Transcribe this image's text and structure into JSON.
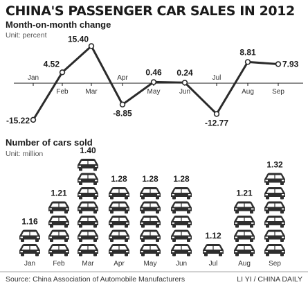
{
  "title": "CHINA'S PASSENGER CAR SALES IN 2012",
  "source": "Source: China Association of Automobile Manufacturers",
  "credit": "LI YI / CHINA DAILY",
  "colors": {
    "line": "#2b2b2b",
    "car_body": "#2e2e2e",
    "car_window": "#ffffff",
    "axis": "#1a1a1a",
    "footer_rule": "#888888"
  },
  "chart_data": [
    {
      "type": "line",
      "title": "Month-on-month change",
      "unit": "Unit: percent",
      "categories": [
        "Jan",
        "Feb",
        "Mar",
        "Apr",
        "May",
        "Jun",
        "Jul",
        "Aug",
        "Sep"
      ],
      "values": [
        -15.22,
        4.52,
        15.4,
        -8.85,
        0.46,
        0.24,
        -12.77,
        8.81,
        7.93
      ],
      "value_labels": [
        "-15.22",
        "4.52",
        "15.40",
        "-8.85",
        "0.46",
        "0.24",
        "-12.77",
        "8.81",
        "7.93"
      ],
      "ylim": [
        -17,
        17
      ],
      "grid": false
    },
    {
      "type": "bar",
      "title": "Number of cars sold",
      "unit": "Unit: million",
      "categories": [
        "Jan",
        "Feb",
        "Mar",
        "Apr",
        "May",
        "Jun",
        "Jul",
        "Aug",
        "Sep"
      ],
      "values": [
        1.16,
        1.21,
        1.4,
        1.28,
        1.28,
        1.28,
        1.12,
        1.21,
        1.32
      ],
      "value_labels": [
        "1.16",
        "1.21",
        "1.40",
        "1.28",
        "1.28",
        "1.28",
        "1.12",
        "1.21",
        "1.32"
      ],
      "car_icon_counts": [
        2,
        4,
        7,
        5,
        5,
        5,
        1,
        4,
        6
      ],
      "grid": false
    }
  ]
}
